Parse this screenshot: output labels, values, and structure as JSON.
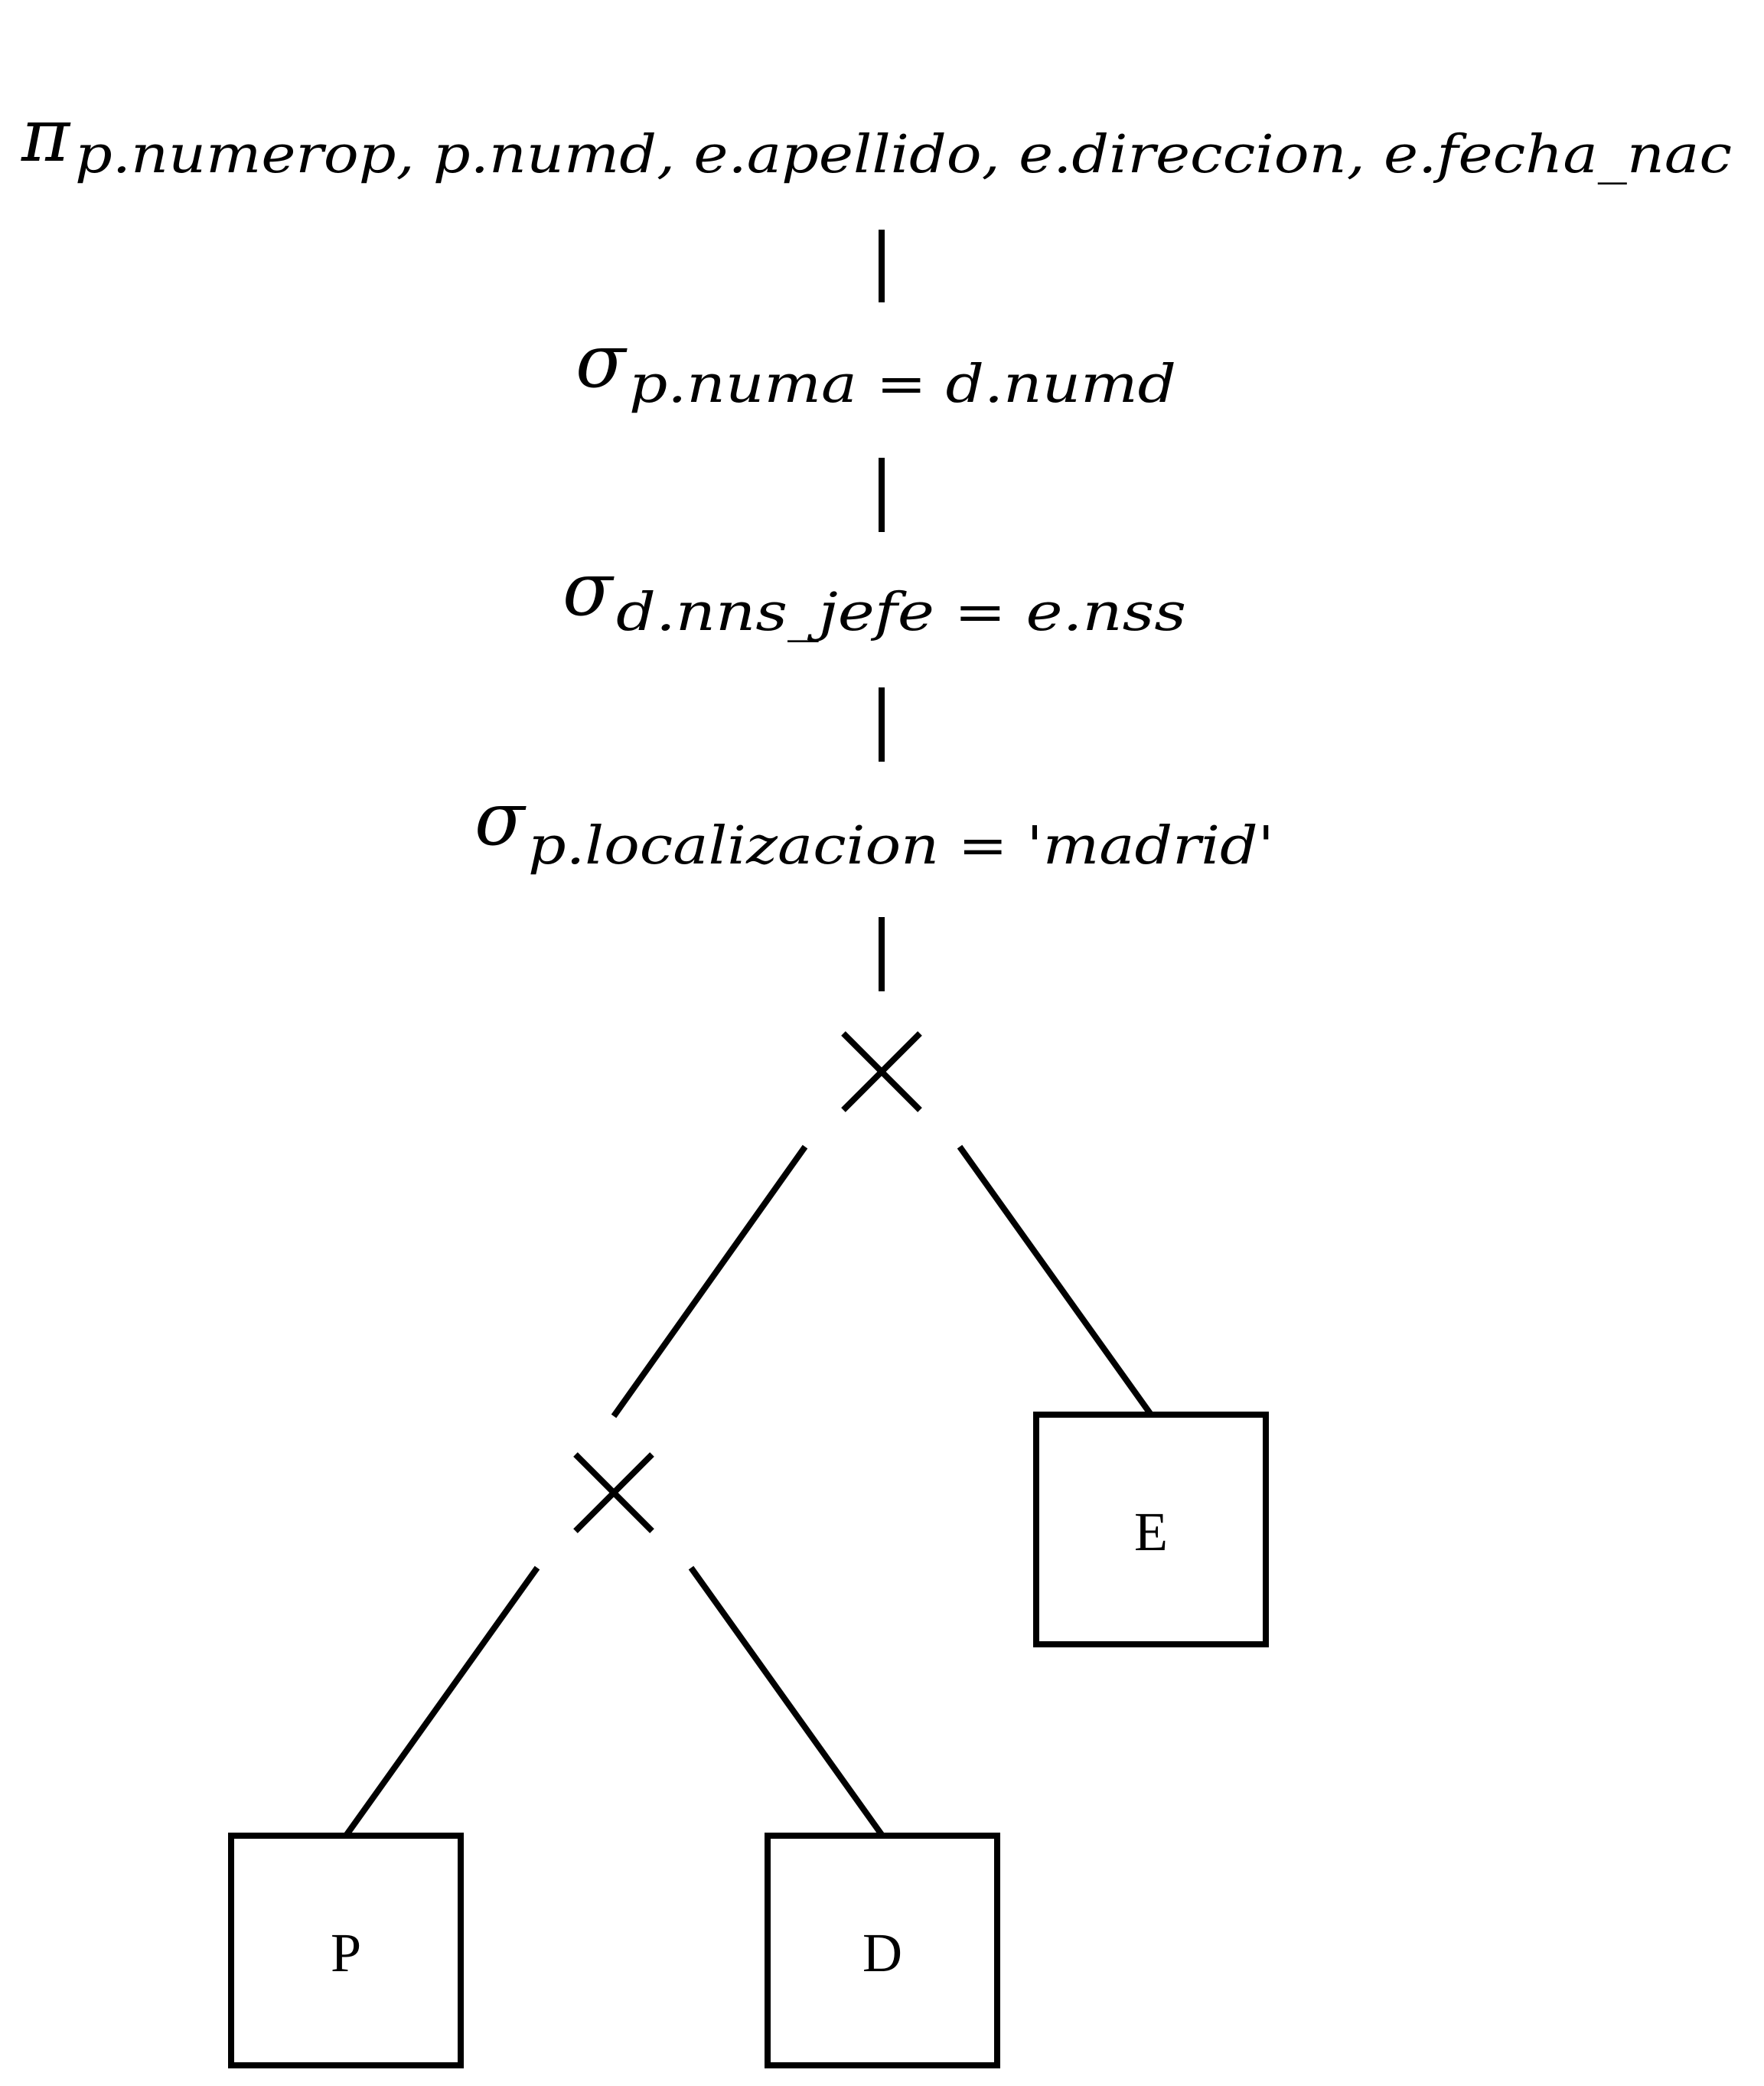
{
  "diagram": {
    "type": "relational-algebra-query-tree",
    "projection": {
      "symbol": "π",
      "attributes": "p.numerop, p.numd, e.apellido, e.direccion, e.fecha_nac"
    },
    "selections": [
      {
        "symbol": "σ",
        "condition": "p.numa = d.numd"
      },
      {
        "symbol": "σ",
        "condition": "d.nns_jefe = e.nss"
      },
      {
        "symbol": "σ",
        "condition": "p.localizacion = 'madrid'"
      }
    ],
    "cross_product_symbol": "×",
    "relations": {
      "P": "P",
      "D": "D",
      "E": "E"
    }
  }
}
